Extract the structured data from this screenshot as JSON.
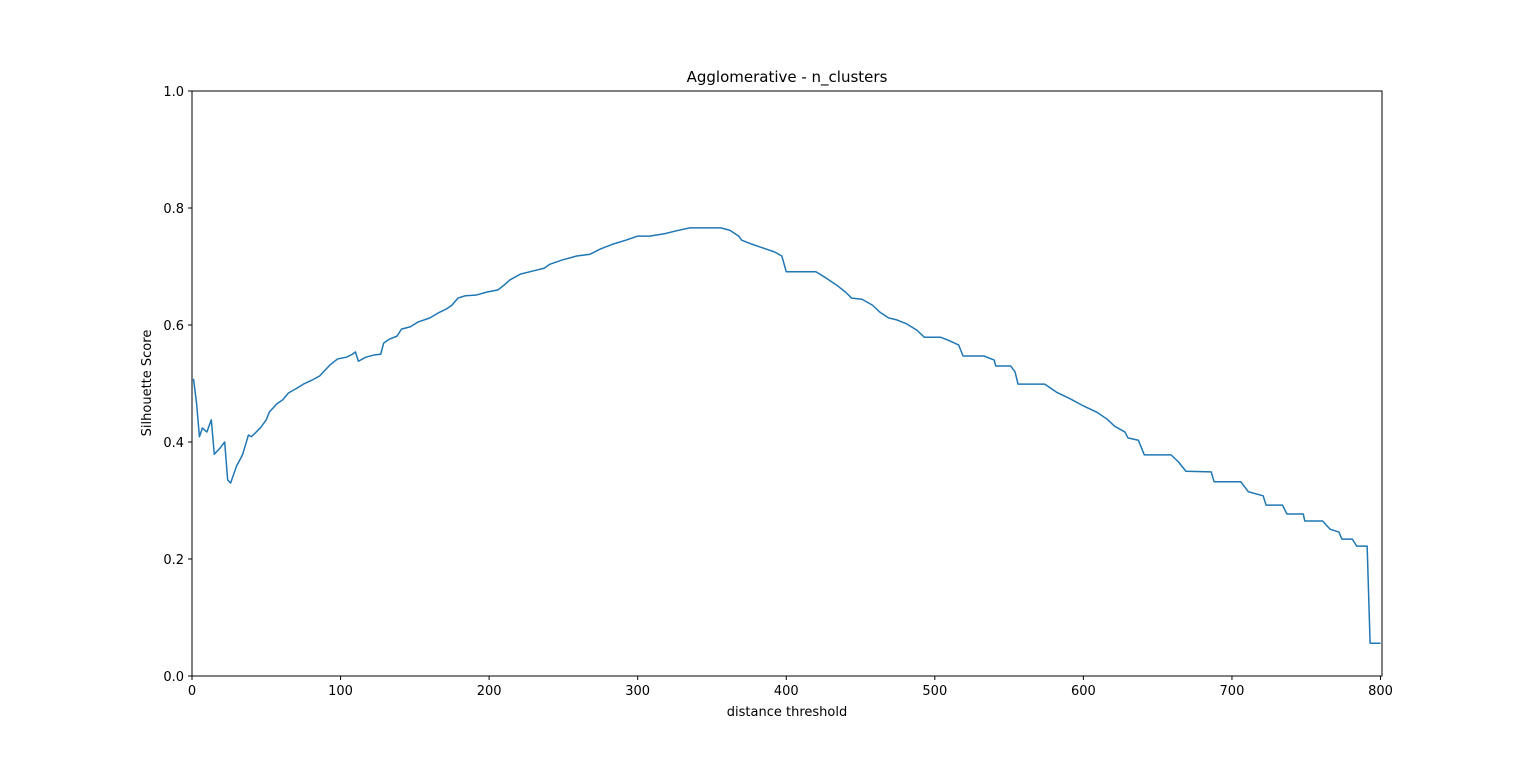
{
  "chart_data": {
    "type": "line",
    "title": "Agglomerative - n_clusters",
    "x_label": "distance threshold",
    "y_label": "Silhouette Score",
    "xlim": [
      0,
      801
    ],
    "ylim": [
      0,
      1
    ],
    "xticks": [
      0,
      100,
      200,
      300,
      400,
      500,
      600,
      700,
      800
    ],
    "yticks": [
      {
        "value": 0,
        "label": "0.0"
      },
      0.2,
      0.4,
      0.6,
      0.8,
      {
        "value": 1,
        "label": "1.0"
      }
    ],
    "x": [
      1,
      3,
      5,
      7,
      10,
      13,
      15,
      19,
      22,
      24,
      26,
      30,
      34,
      36,
      38,
      40,
      46,
      50,
      52,
      57,
      61,
      65,
      70,
      75,
      81,
      86,
      93,
      98,
      104,
      108,
      110,
      112,
      117,
      123,
      127,
      129,
      133,
      138,
      141,
      147,
      152,
      160,
      166,
      171,
      175,
      179,
      184,
      191,
      198,
      206,
      210,
      214,
      221,
      229,
      237,
      241,
      249,
      259,
      268,
      275,
      283,
      292,
      300,
      308,
      318,
      326,
      335,
      346,
      356,
      362,
      368,
      370,
      377,
      384,
      392,
      397,
      400,
      409,
      420,
      427,
      434,
      440,
      444,
      451,
      458,
      463,
      469,
      474,
      481,
      488,
      493,
      504,
      509,
      516,
      519,
      533,
      540,
      541,
      551,
      554,
      556,
      574,
      582,
      591,
      599,
      609,
      616,
      621,
      628,
      630,
      637,
      641,
      659,
      664,
      669,
      686,
      688,
      706,
      711,
      721,
      723,
      734,
      737,
      748,
      749,
      761,
      766,
      772,
      774,
      781,
      784,
      791,
      793,
      800
    ],
    "series": [
      {
        "name": "Silhouette Score",
        "color": "#1f77b4",
        "values": [
          0.508,
          0.468,
          0.409,
          0.424,
          0.417,
          0.438,
          0.379,
          0.39,
          0.4,
          0.335,
          0.33,
          0.359,
          0.378,
          0.395,
          0.412,
          0.409,
          0.424,
          0.438,
          0.451,
          0.465,
          0.472,
          0.484,
          0.491,
          0.499,
          0.506,
          0.513,
          0.532,
          0.542,
          0.545,
          0.55,
          0.554,
          0.538,
          0.545,
          0.549,
          0.55,
          0.569,
          0.576,
          0.581,
          0.593,
          0.597,
          0.605,
          0.612,
          0.621,
          0.627,
          0.634,
          0.646,
          0.65,
          0.651,
          0.656,
          0.66,
          0.668,
          0.677,
          0.687,
          0.692,
          0.697,
          0.704,
          0.711,
          0.718,
          0.721,
          0.73,
          0.738,
          0.745,
          0.752,
          0.752,
          0.756,
          0.761,
          0.766,
          0.766,
          0.766,
          0.762,
          0.752,
          0.745,
          0.738,
          0.732,
          0.725,
          0.718,
          0.691,
          0.691,
          0.691,
          0.68,
          0.668,
          0.656,
          0.646,
          0.644,
          0.634,
          0.622,
          0.612,
          0.609,
          0.602,
          0.591,
          0.579,
          0.579,
          0.574,
          0.566,
          0.547,
          0.547,
          0.54,
          0.53,
          0.53,
          0.52,
          0.499,
          0.499,
          0.485,
          0.474,
          0.463,
          0.451,
          0.439,
          0.427,
          0.417,
          0.407,
          0.403,
          0.378,
          0.378,
          0.366,
          0.35,
          0.349,
          0.332,
          0.332,
          0.315,
          0.308,
          0.292,
          0.292,
          0.277,
          0.277,
          0.265,
          0.265,
          0.251,
          0.246,
          0.234,
          0.234,
          0.222,
          0.222,
          0.056,
          0.056
        ]
      }
    ]
  }
}
